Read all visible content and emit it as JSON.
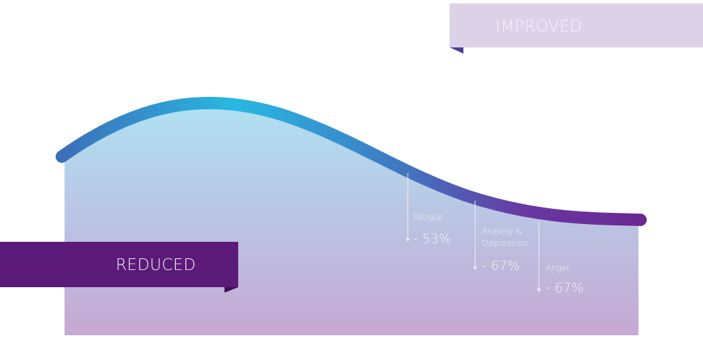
{
  "banners": {
    "improved": "IMPROVED",
    "reduced": "REDUCED"
  },
  "items": [
    {
      "label": "Fatigue",
      "value": "- 53%"
    },
    {
      "label": "Anxiety & Depression",
      "value": "- 67%"
    },
    {
      "label": "Anger",
      "value": "- 67%"
    }
  ]
}
